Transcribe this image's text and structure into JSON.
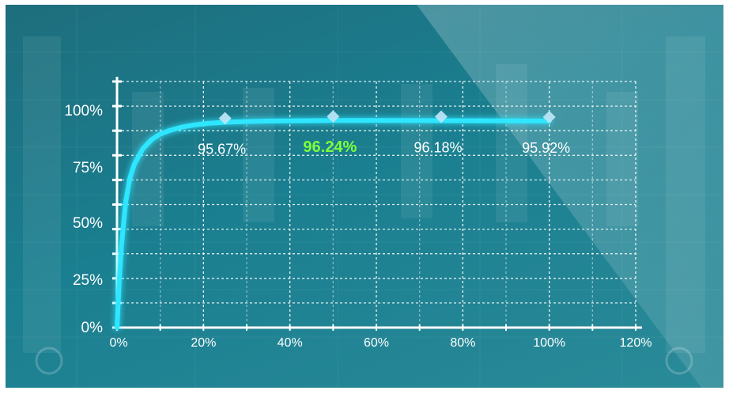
{
  "chart_data": {
    "type": "line",
    "title": "",
    "xlabel": "",
    "ylabel": "",
    "xlim": [
      0,
      120
    ],
    "ylim": [
      0,
      100
    ],
    "x_ticks": [
      "0%",
      "20%",
      "40%",
      "60%",
      "80%",
      "100%",
      "120%"
    ],
    "y_ticks": [
      "0%",
      "25%",
      "50%",
      "75%",
      "100%"
    ],
    "grid": true,
    "series": [
      {
        "curve_x": [
          0,
          0.5,
          1,
          2,
          3,
          4,
          6,
          8,
          10,
          12,
          15,
          18,
          21,
          25,
          30,
          35,
          40,
          50,
          60,
          75,
          90,
          100
        ],
        "curve_y": [
          0,
          20,
          36,
          56,
          67,
          73,
          80,
          84,
          86.5,
          88,
          89.6,
          90.6,
          91.3,
          91.8,
          92.1,
          92.3,
          92.4,
          92.6,
          92.6,
          92.5,
          92.4,
          92.3
        ],
        "points": [
          {
            "x": 25,
            "y": 95.67,
            "label": "95.67%"
          },
          {
            "x": 50,
            "y": 96.24,
            "label": "96.24%",
            "highlight": true
          },
          {
            "x": 75,
            "y": 96.18,
            "label": "96.18%"
          },
          {
            "x": 100,
            "y": 95.92,
            "label": "95.92%"
          }
        ],
        "color": "#2ee6ff"
      }
    ],
    "colors": {
      "line": "#2ee6ff",
      "marker": "#b9e4f7",
      "label": "#ffffff",
      "highlight_label": "#7dff3a",
      "grid": "#ffffff"
    }
  }
}
